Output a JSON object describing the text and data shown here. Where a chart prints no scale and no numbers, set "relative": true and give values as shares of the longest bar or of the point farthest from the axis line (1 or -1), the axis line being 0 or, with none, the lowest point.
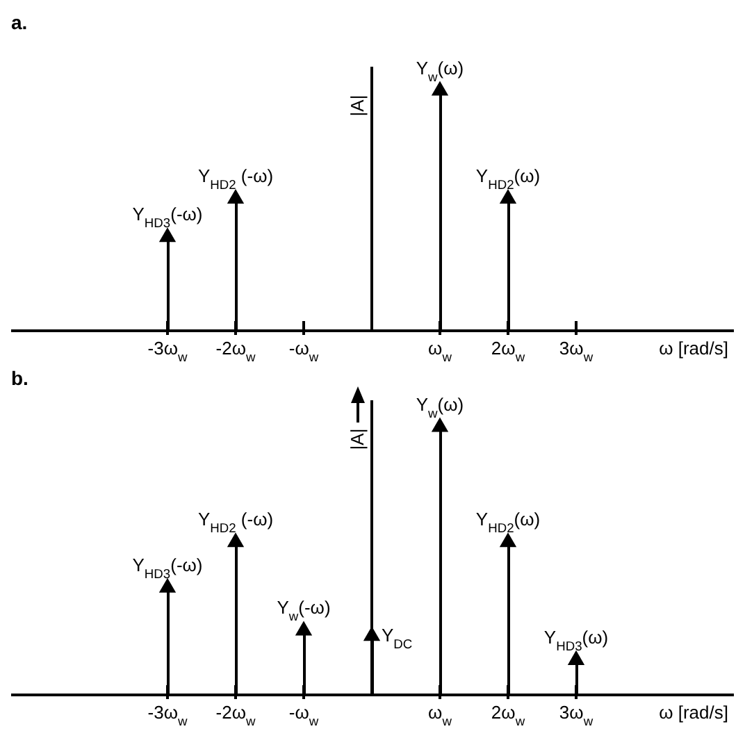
{
  "chart_data": [
    {
      "type": "lollipop",
      "title": "a.",
      "xlabel": "ω [rad/s]",
      "ylabel": "|A|",
      "relative": true,
      "marker": "triangle",
      "categories": [
        "-3ω$_{w}$",
        "-2ω$_{w}$",
        "-ω$_{w}$",
        null,
        "ω$_{w}$",
        "2ω$_{w}$",
        "3ω$_{w}$"
      ],
      "series": [
        {
          "color": "#000000",
          "values": [
            0.39,
            0.55,
            null,
            null,
            1,
            0.55,
            null
          ]
        }
      ],
      "annotations": [
        {
          "text": "Y$_{HD3}$(-ω)",
          "x": "-3ω$_{w}$",
          "y": 0.39
        },
        {
          "text": "Y$_{HD2}$ (-ω)",
          "x": "-2ω$_{w}$",
          "y": 0.55
        },
        {
          "text": "Y$_{w}$(ω)",
          "x": "ω$_{w}$",
          "y": 1
        },
        {
          "text": "Y$_{HD2}$(ω)",
          "x": "2ω$_{w}$",
          "y": 0.55
        }
      ]
    },
    {
      "type": "lollipop",
      "title": "b.",
      "xlabel": "ω [rad/s]",
      "ylabel": "|A|",
      "relative": true,
      "marker": "triangle",
      "categories": [
        "-3ω$_{w}$",
        "-2ω$_{w}$",
        "-ω$_{w}$",
        null,
        "ω$_{w}$",
        "2ω$_{w}$",
        "3ω$_{w}$"
      ],
      "series": [
        {
          "color": "#000000",
          "values": [
            0.4,
            0.57,
            0.24,
            0.22,
            1,
            0.57,
            0.13
          ]
        }
      ],
      "annotations": [
        {
          "text": "Y$_{HD3}$(-ω)",
          "x": "-3ω$_{w}$",
          "y": 0.4
        },
        {
          "text": "Y$_{HD2}$ (-ω)",
          "x": "-2ω$_{w}$",
          "y": 0.57
        },
        {
          "text": "Y$_{w}$(-ω)",
          "x": "-ω$_{w}$",
          "y": 0.24
        },
        "Y$_{DC}$",
        {
          "text": "Y$_{w}$(ω)",
          "x": "ω$_{w}$",
          "y": 1
        },
        {
          "text": "Y$_{HD2}$(ω)",
          "x": "2ω$_{w}$",
          "y": 0.57
        },
        {
          "text": "Y$_{HD3}$(ω)",
          "x": "3ω$_{w}$",
          "y": 0.13
        }
      ]
    }
  ]
}
